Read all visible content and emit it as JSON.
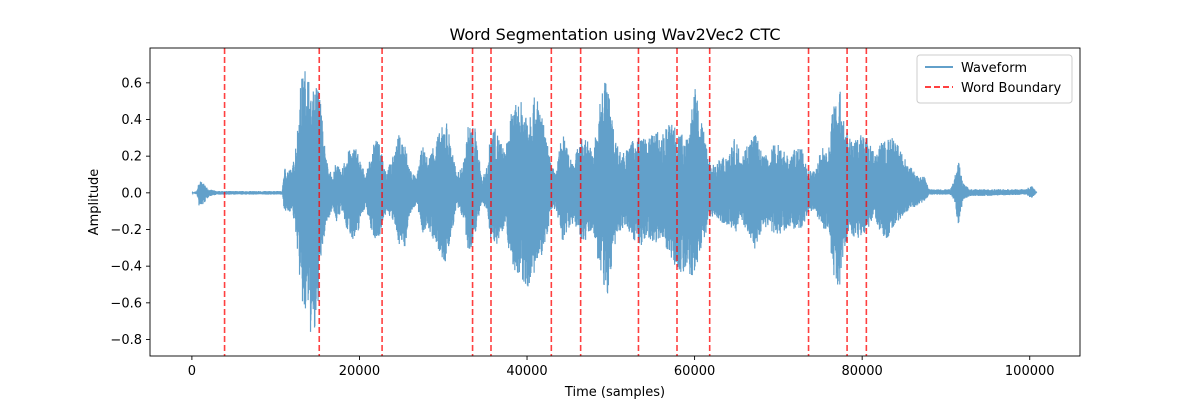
{
  "chart_data": {
    "type": "line",
    "title": "Word Segmentation using Wav2Vec2 CTC",
    "xlabel": "Time (samples)",
    "ylabel": "Amplitude",
    "xlim": [
      -5000,
      106000
    ],
    "ylim": [
      -0.89,
      0.79
    ],
    "xticks": [
      0,
      20000,
      40000,
      60000,
      80000,
      100000
    ],
    "xtick_labels": [
      "0",
      "20000",
      "40000",
      "60000",
      "80000",
      "100000"
    ],
    "yticks": [
      -0.8,
      -0.6,
      -0.4,
      -0.2,
      0.0,
      0.2,
      0.4,
      0.6
    ],
    "ytick_labels": [
      "−0.8",
      "−0.6",
      "−0.4",
      "−0.2",
      "0.0",
      "0.2",
      "0.4",
      "0.6"
    ],
    "grid": false,
    "legend_position": "top-right",
    "series": [
      {
        "name": "Waveform",
        "style": "solid",
        "color": "#1f77b4",
        "opacity": 0.7,
        "x_range": [
          0,
          100800
        ],
        "envelope": [
          [
            0,
            0.0,
            0.0
          ],
          [
            600,
            0.01,
            -0.01
          ],
          [
            900,
            0.07,
            -0.09
          ],
          [
            1400,
            0.05,
            -0.06
          ],
          [
            2000,
            0.02,
            -0.02
          ],
          [
            3000,
            0.01,
            -0.01
          ],
          [
            10800,
            0.01,
            -0.01
          ],
          [
            11000,
            0.14,
            -0.11
          ],
          [
            12000,
            0.13,
            -0.1
          ],
          [
            12600,
            0.36,
            -0.32
          ],
          [
            13000,
            0.62,
            -0.57
          ],
          [
            13500,
            0.68,
            -0.72
          ],
          [
            13800,
            0.72,
            -0.62
          ],
          [
            14200,
            0.52,
            -0.8
          ],
          [
            14800,
            0.6,
            -0.82
          ],
          [
            15200,
            0.6,
            -0.46
          ],
          [
            15600,
            0.38,
            -0.3
          ],
          [
            16000,
            0.2,
            -0.18
          ],
          [
            16800,
            0.08,
            -0.08
          ],
          [
            17300,
            0.2,
            -0.17
          ],
          [
            17800,
            0.1,
            -0.09
          ],
          [
            18400,
            0.22,
            -0.2
          ],
          [
            19000,
            0.24,
            -0.24
          ],
          [
            19600,
            0.26,
            -0.28
          ],
          [
            20200,
            0.16,
            -0.12
          ],
          [
            20800,
            0.1,
            -0.08
          ],
          [
            21300,
            0.2,
            -0.2
          ],
          [
            21900,
            0.3,
            -0.26
          ],
          [
            22600,
            0.25,
            -0.22
          ],
          [
            23200,
            0.12,
            -0.1
          ],
          [
            24000,
            0.2,
            -0.16
          ],
          [
            24700,
            0.32,
            -0.28
          ],
          [
            25400,
            0.28,
            -0.3
          ],
          [
            26000,
            0.14,
            -0.12
          ],
          [
            26800,
            0.08,
            -0.06
          ],
          [
            27500,
            0.26,
            -0.22
          ],
          [
            28200,
            0.18,
            -0.2
          ],
          [
            29000,
            0.3,
            -0.28
          ],
          [
            29700,
            0.34,
            -0.36
          ],
          [
            30300,
            0.42,
            -0.4
          ],
          [
            31000,
            0.26,
            -0.22
          ],
          [
            31600,
            0.1,
            -0.08
          ],
          [
            32400,
            0.16,
            -0.14
          ],
          [
            33000,
            0.38,
            -0.36
          ],
          [
            33800,
            0.36,
            -0.22
          ],
          [
            34600,
            0.08,
            -0.06
          ],
          [
            35200,
            0.14,
            -0.1
          ],
          [
            35800,
            0.38,
            -0.3
          ],
          [
            36600,
            0.32,
            -0.27
          ],
          [
            37400,
            0.22,
            -0.16
          ],
          [
            38000,
            0.42,
            -0.38
          ],
          [
            38600,
            0.48,
            -0.44
          ],
          [
            39200,
            0.5,
            -0.5
          ],
          [
            40000,
            0.48,
            -0.52
          ],
          [
            40800,
            0.52,
            -0.46
          ],
          [
            41400,
            0.52,
            -0.4
          ],
          [
            42200,
            0.32,
            -0.28
          ],
          [
            42800,
            0.18,
            -0.12
          ],
          [
            43400,
            0.1,
            -0.08
          ],
          [
            44200,
            0.34,
            -0.28
          ],
          [
            44800,
            0.24,
            -0.2
          ],
          [
            45600,
            0.18,
            -0.16
          ],
          [
            46400,
            0.3,
            -0.26
          ],
          [
            47200,
            0.3,
            -0.26
          ],
          [
            47800,
            0.22,
            -0.2
          ],
          [
            48400,
            0.38,
            -0.36
          ],
          [
            49200,
            0.66,
            -0.56
          ],
          [
            49700,
            0.58,
            -0.56
          ],
          [
            50400,
            0.32,
            -0.3
          ],
          [
            51200,
            0.22,
            -0.2
          ],
          [
            52000,
            0.24,
            -0.2
          ],
          [
            52800,
            0.3,
            -0.26
          ],
          [
            53600,
            0.32,
            -0.3
          ],
          [
            54400,
            0.28,
            -0.24
          ],
          [
            55200,
            0.36,
            -0.28
          ],
          [
            56000,
            0.3,
            -0.24
          ],
          [
            56800,
            0.38,
            -0.32
          ],
          [
            57600,
            0.4,
            -0.4
          ],
          [
            58400,
            0.32,
            -0.44
          ],
          [
            59200,
            0.34,
            -0.46
          ],
          [
            60000,
            0.58,
            -0.46
          ],
          [
            60800,
            0.4,
            -0.3
          ],
          [
            61600,
            0.22,
            -0.18
          ],
          [
            62400,
            0.14,
            -0.12
          ],
          [
            63200,
            0.2,
            -0.16
          ],
          [
            64000,
            0.22,
            -0.18
          ],
          [
            64800,
            0.3,
            -0.22
          ],
          [
            65600,
            0.22,
            -0.16
          ],
          [
            66400,
            0.28,
            -0.22
          ],
          [
            67200,
            0.34,
            -0.32
          ],
          [
            68000,
            0.22,
            -0.2
          ],
          [
            68800,
            0.2,
            -0.18
          ],
          [
            69600,
            0.28,
            -0.24
          ],
          [
            70400,
            0.26,
            -0.22
          ],
          [
            71200,
            0.2,
            -0.18
          ],
          [
            72000,
            0.24,
            -0.2
          ],
          [
            72800,
            0.24,
            -0.2
          ],
          [
            73600,
            0.12,
            -0.1
          ],
          [
            74400,
            0.12,
            -0.1
          ],
          [
            75200,
            0.26,
            -0.2
          ],
          [
            76000,
            0.24,
            -0.2
          ],
          [
            76600,
            0.54,
            -0.5
          ],
          [
            77200,
            0.6,
            -0.54
          ],
          [
            77800,
            0.44,
            -0.36
          ],
          [
            78400,
            0.3,
            -0.2
          ],
          [
            79000,
            0.28,
            -0.24
          ],
          [
            79800,
            0.34,
            -0.26
          ],
          [
            80600,
            0.3,
            -0.2
          ],
          [
            81400,
            0.22,
            -0.14
          ],
          [
            82200,
            0.28,
            -0.22
          ],
          [
            83000,
            0.3,
            -0.26
          ],
          [
            83800,
            0.3,
            -0.18
          ],
          [
            84600,
            0.24,
            -0.14
          ],
          [
            85400,
            0.16,
            -0.1
          ],
          [
            86200,
            0.12,
            -0.08
          ],
          [
            86800,
            0.08,
            -0.06
          ],
          [
            87400,
            0.1,
            -0.05
          ],
          [
            88000,
            0.02,
            -0.01
          ],
          [
            90500,
            0.02,
            -0.01
          ],
          [
            91000,
            0.08,
            -0.04
          ],
          [
            91500,
            0.18,
            -0.19
          ],
          [
            92000,
            0.06,
            -0.04
          ],
          [
            92800,
            0.02,
            -0.02
          ],
          [
            99500,
            0.02,
            -0.01
          ],
          [
            100200,
            0.04,
            -0.03
          ],
          [
            100800,
            0.01,
            0.0
          ]
        ]
      },
      {
        "name": "Word Boundary",
        "style": "dashed",
        "color": "#ff0000",
        "opacity": 0.75,
        "x": [
          3900,
          15200,
          22700,
          33500,
          35700,
          42900,
          46400,
          53300,
          57900,
          61800,
          73600,
          78200,
          80500
        ]
      }
    ]
  }
}
